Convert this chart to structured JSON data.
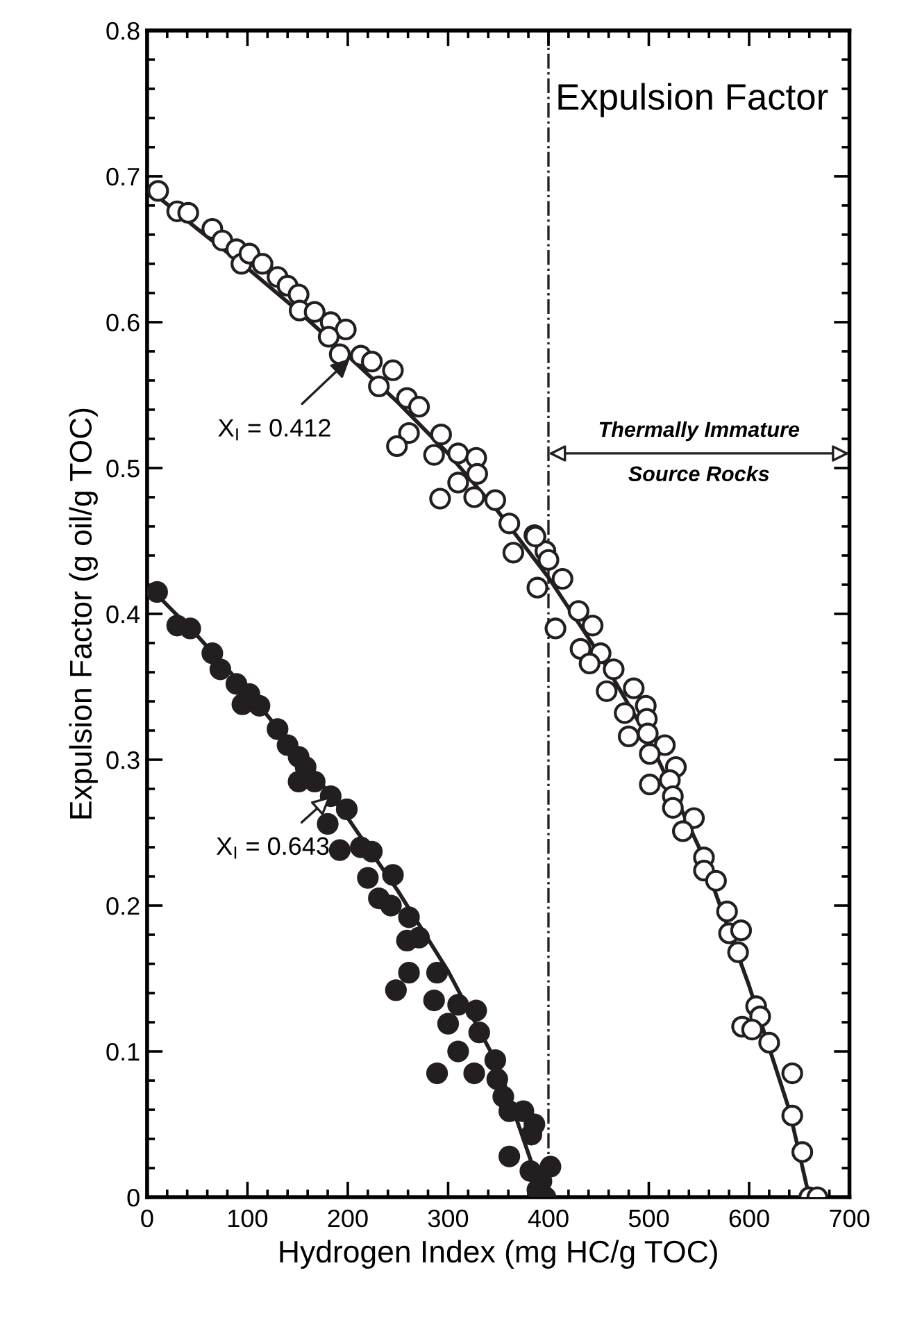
{
  "chart_data": {
    "type": "scatter",
    "title": "Expulsion Factor",
    "xlabel": "Hydrogen Index (mg HC/g TOC)",
    "ylabel": "Expulsion Factor (g oil/g TOC)",
    "xlim": [
      0,
      700
    ],
    "ylim": [
      0,
      0.8
    ],
    "xticks": [
      0,
      100,
      200,
      300,
      400,
      500,
      600,
      700
    ],
    "yticks": [
      0,
      0.1,
      0.2,
      0.3,
      0.4,
      0.5,
      0.6,
      0.7,
      0.8
    ],
    "grid": false,
    "marker": "circle",
    "series": [
      {
        "color": "#ffffff",
        "x": [
          11,
          30,
          41,
          65,
          75,
          89,
          94,
          102,
          115,
          130,
          140,
          151,
          152,
          167,
          183,
          198,
          181,
          192,
          213,
          224,
          245,
          231,
          259,
          271,
          261,
          249,
          293,
          286,
          310,
          328,
          329,
          310,
          292,
          347,
          326,
          361,
          386,
          365,
          397,
          387,
          400,
          414,
          389,
          430,
          407,
          444,
          432,
          452,
          441,
          465,
          458,
          485,
          476,
          497,
          498,
          480,
          499,
          516,
          501,
          527,
          501,
          521,
          524,
          524,
          545,
          534,
          555,
          555,
          567,
          578,
          580,
          592,
          589,
          607,
          611,
          593,
          603,
          620,
          643,
          643,
          653,
          660,
          668
        ],
        "values": [
          0.69,
          0.676,
          0.675,
          0.664,
          0.656,
          0.65,
          0.64,
          0.647,
          0.64,
          0.631,
          0.625,
          0.619,
          0.608,
          0.607,
          0.6,
          0.595,
          0.59,
          0.578,
          0.577,
          0.573,
          0.567,
          0.556,
          0.548,
          0.542,
          0.524,
          0.515,
          0.523,
          0.509,
          0.51,
          0.507,
          0.496,
          0.49,
          0.479,
          0.478,
          0.48,
          0.462,
          0.454,
          0.442,
          0.443,
          0.453,
          0.437,
          0.424,
          0.418,
          0.402,
          0.39,
          0.392,
          0.376,
          0.373,
          0.366,
          0.362,
          0.347,
          0.349,
          0.332,
          0.337,
          0.328,
          0.316,
          0.318,
          0.31,
          0.304,
          0.295,
          0.283,
          0.286,
          0.275,
          0.267,
          0.26,
          0.251,
          0.233,
          0.224,
          0.217,
          0.196,
          0.181,
          0.183,
          0.168,
          0.131,
          0.124,
          0.117,
          0.115,
          0.106,
          0.085,
          0.056,
          0.031,
          0,
          0
        ]
      },
      {
        "color": "#231f20",
        "x": [
          10,
          30,
          43,
          65,
          73,
          89,
          95,
          102,
          112,
          130,
          140,
          151,
          158,
          151,
          167,
          183,
          199,
          180,
          192,
          213,
          224,
          220,
          245,
          231,
          243,
          261,
          259,
          271,
          261,
          248,
          289,
          286,
          310,
          328,
          300,
          331,
          310,
          289,
          326,
          347,
          349,
          355,
          361,
          375,
          386,
          361,
          379,
          402,
          382,
          393,
          397,
          389,
          383
        ],
        "values": [
          0.415,
          0.392,
          0.39,
          0.373,
          0.362,
          0.352,
          0.338,
          0.345,
          0.337,
          0.321,
          0.31,
          0.302,
          0.295,
          0.285,
          0.285,
          0.275,
          0.266,
          0.256,
          0.238,
          0.24,
          0.237,
          0.219,
          0.221,
          0.205,
          0.2,
          0.192,
          0.176,
          0.178,
          0.154,
          0.142,
          0.154,
          0.135,
          0.132,
          0.128,
          0.119,
          0.113,
          0.1,
          0.085,
          0.085,
          0.094,
          0.081,
          0.069,
          0.059,
          0.059,
          0.05,
          0.028,
          null,
          0.021,
          0.018,
          0.011,
          0,
          0.005,
          0.043
        ]
      },
      {
        "type": "line",
        "color": "#231f20",
        "marker": "none",
        "line_style": "solid",
        "x": [
          0,
          50,
          100,
          150,
          200,
          250,
          300,
          350,
          400,
          450,
          500,
          550,
          600,
          640,
          660
        ],
        "values": [
          0.692,
          0.664,
          0.637,
          0.608,
          0.577,
          0.545,
          0.51,
          0.47,
          0.425,
          0.373,
          0.314,
          0.24,
          0.145,
          0.06,
          0
        ]
      },
      {
        "type": "line",
        "color": "#231f20",
        "marker": "none",
        "line_style": "solid",
        "x": [
          0,
          50,
          100,
          150,
          200,
          250,
          300,
          350,
          395
        ],
        "values": [
          0.42,
          0.385,
          0.347,
          0.305,
          0.26,
          0.21,
          0.155,
          0.09,
          0
        ]
      }
    ],
    "ref_lines": [
      {
        "axis": "x",
        "value": 400,
        "label": null,
        "color": "#231f20",
        "line_style": "dashdot"
      }
    ],
    "annotations": [
      {
        "text": "X$_{I}$ = 0.412",
        "x": 202,
        "y": 0.575
      },
      {
        "text": "X$_{I}$ = 0.643",
        "x": 183,
        "y": 0.275
      },
      {
        "text": "Thermally Immature\nSource Rocks",
        "x": 400,
        "y": 0.51
      }
    ]
  }
}
